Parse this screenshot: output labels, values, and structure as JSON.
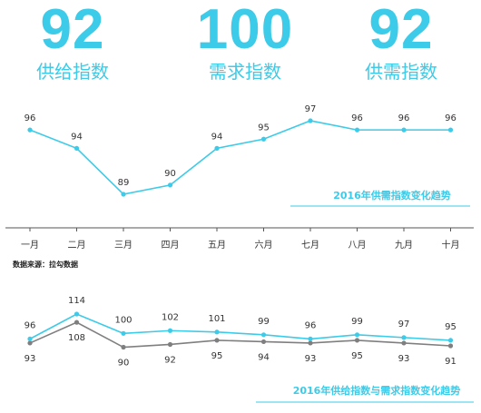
{
  "kpis": [
    {
      "value": "92",
      "label": "供给指数"
    },
    {
      "value": "100",
      "label": "需求指数"
    },
    {
      "value": "92",
      "label": "供需指数"
    }
  ],
  "source_note": "数据来源：拉勾数据",
  "colors": {
    "accent": "#3ccbe8",
    "line2": "#7f7f7f",
    "axis": "#555555"
  },
  "chart_data": [
    {
      "type": "line",
      "title": "2016年供需指数变化趋势",
      "categories": [
        "一月",
        "二月",
        "三月",
        "四月",
        "五月",
        "六月",
        "七月",
        "八月",
        "九月",
        "十月"
      ],
      "series": [
        {
          "values": [
            96,
            94,
            89,
            90,
            94,
            95,
            97,
            96,
            96,
            96
          ]
        }
      ],
      "data_labels": true,
      "grid": false
    },
    {
      "type": "line",
      "title": "2016年供给指数与需求指数变化趋势",
      "categories": [
        "一月",
        "二月",
        "三月",
        "四月",
        "五月",
        "六月",
        "七月",
        "八月",
        "九月",
        "十月"
      ],
      "series": [
        {
          "values": [
            96,
            114,
            100,
            102,
            101,
            99,
            96,
            99,
            97,
            95
          ]
        },
        {
          "values": [
            93,
            108,
            90,
            92,
            95,
            94,
            93,
            95,
            93,
            91
          ]
        }
      ],
      "data_labels": true,
      "grid": false
    }
  ]
}
